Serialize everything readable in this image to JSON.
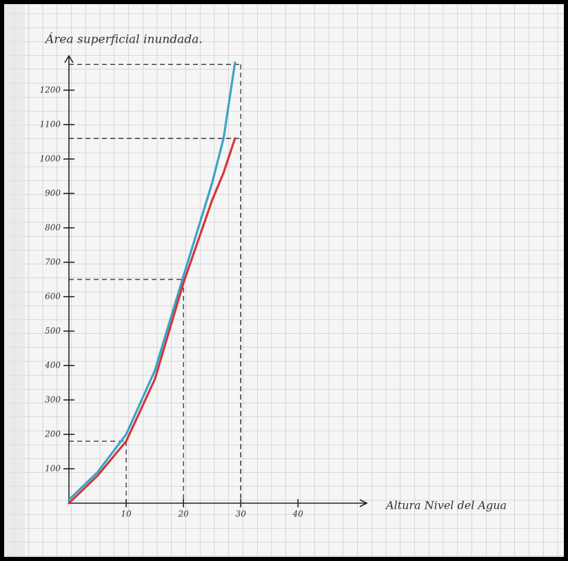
{
  "chart_data": {
    "type": "line",
    "title": "Área superficial inundada.",
    "x_label": "Altura Nivel del Agua",
    "x": [
      0,
      5,
      10,
      15,
      20,
      25,
      27,
      29
    ],
    "series": [
      {
        "color": "#3aa3c8",
        "values": [
          10,
          90,
          200,
          385,
          660,
          930,
          1060,
          1280
        ]
      },
      {
        "color": "#d2373a",
        "values": [
          0,
          80,
          180,
          360,
          640,
          880,
          960,
          1060
        ]
      }
    ],
    "guides": [
      {
        "x": 10,
        "y": 180
      },
      {
        "x": 20,
        "y": 650
      },
      {
        "x": 30,
        "y": 1060
      },
      {
        "x": 30,
        "y": 1275
      }
    ],
    "xlim": [
      0,
      52
    ],
    "ylim": [
      0,
      1300
    ],
    "xticks": [
      10,
      20,
      30,
      40
    ],
    "yticks": [
      100,
      200,
      300,
      400,
      500,
      600,
      700,
      800,
      900,
      1000,
      1100,
      1200
    ]
  }
}
